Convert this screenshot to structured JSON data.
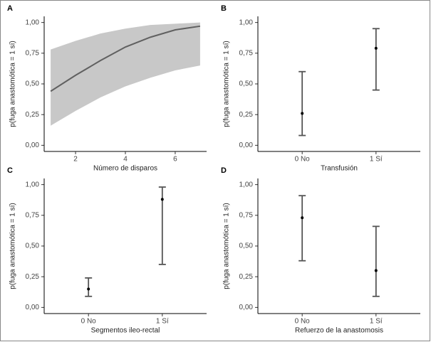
{
  "chart_data": [
    {
      "type": "line",
      "panel_label": "A",
      "xlabel": "Número de disparos",
      "ylabel": "p(fuga anastomótica = 1 sí)",
      "x": [
        1,
        2,
        3,
        4,
        5,
        6,
        7
      ],
      "values": [
        0.44,
        0.57,
        0.69,
        0.8,
        0.88,
        0.94,
        0.97
      ],
      "lower": [
        0.16,
        0.28,
        0.39,
        0.48,
        0.55,
        0.61,
        0.65
      ],
      "upper": [
        0.78,
        0.85,
        0.91,
        0.95,
        0.98,
        0.99,
        1.0
      ],
      "color": "#606060",
      "band_color": "#c8c8c8",
      "xlim": [
        0.74,
        7.26
      ],
      "xticks": [
        2,
        4,
        6
      ],
      "ylim": [
        -0.05,
        1.05
      ],
      "yticks": [
        {
          "value": 0,
          "label": "0,00"
        },
        {
          "value": 0.25,
          "label": "0,25"
        },
        {
          "value": 0.5,
          "label": "0,50"
        },
        {
          "value": 0.75,
          "label": "0,75"
        },
        {
          "value": 1,
          "label": "1,00"
        }
      ]
    },
    {
      "type": "errorbar",
      "panel_label": "B",
      "xlabel": "Transfusión",
      "ylabel": "p(fuga anastomótica = 1 sí)",
      "categories": [
        "0 No",
        "1 Sí"
      ],
      "values": [
        0.26,
        0.79
      ],
      "lower": [
        0.08,
        0.45
      ],
      "upper": [
        0.6,
        0.95
      ],
      "color": "#555555",
      "ylim": [
        -0.05,
        1.05
      ],
      "yticks": [
        {
          "value": 0,
          "label": "0,00"
        },
        {
          "value": 0.25,
          "label": "0,25"
        },
        {
          "value": 0.5,
          "label": "0,50"
        },
        {
          "value": 0.75,
          "label": "0,75"
        },
        {
          "value": 1,
          "label": "1,00"
        }
      ]
    },
    {
      "type": "errorbar",
      "panel_label": "C",
      "xlabel": "Segmentos ileo-rectal",
      "ylabel": "p(fuga anastomótica = 1 sí)",
      "categories": [
        "0 No",
        "1 Sí"
      ],
      "values": [
        0.15,
        0.88
      ],
      "lower": [
        0.09,
        0.35
      ],
      "upper": [
        0.24,
        0.98
      ],
      "color": "#555555",
      "ylim": [
        -0.05,
        1.05
      ],
      "yticks": [
        {
          "value": 0,
          "label": "0,00"
        },
        {
          "value": 0.25,
          "label": "0,25"
        },
        {
          "value": 0.5,
          "label": "0,50"
        },
        {
          "value": 0.75,
          "label": "0,75"
        },
        {
          "value": 1,
          "label": "1,00"
        }
      ]
    },
    {
      "type": "errorbar",
      "panel_label": "D",
      "xlabel": "Refuerzo de la anastomosis",
      "ylabel": "p(fuga anastomótica = 1 sí)",
      "categories": [
        "0 No",
        "1 Sí"
      ],
      "values": [
        0.73,
        0.3
      ],
      "lower": [
        0.38,
        0.09
      ],
      "upper": [
        0.91,
        0.66
      ],
      "color": "#555555",
      "ylim": [
        -0.05,
        1.05
      ],
      "yticks": [
        {
          "value": 0,
          "label": "0,00"
        },
        {
          "value": 0.25,
          "label": "0,25"
        },
        {
          "value": 0.5,
          "label": "0,50"
        },
        {
          "value": 0.75,
          "label": "0,75"
        },
        {
          "value": 1,
          "label": "1,00"
        }
      ]
    }
  ]
}
